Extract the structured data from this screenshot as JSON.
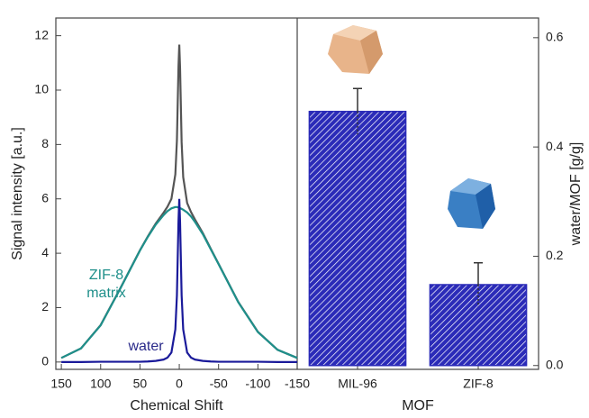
{
  "chart_data": [
    {
      "type": "line",
      "x_label": "Chemical Shift",
      "y_label": "Signal intensity [a.u.]",
      "x": [
        150,
        125,
        100,
        75,
        50,
        40,
        30,
        20,
        15,
        10,
        5,
        3,
        1,
        0,
        -1,
        -3,
        -5,
        -10,
        -15,
        -20,
        -30,
        -40,
        -50,
        -75,
        -100,
        -125,
        -150
      ],
      "series": [
        {
          "color": "#555555",
          "values": [
            0.15,
            0.5,
            1.36,
            2.71,
            4.11,
            4.62,
            5.09,
            5.49,
            5.71,
            6.0,
            6.9,
            8.15,
            10.85,
            11.67,
            10.83,
            8.08,
            6.8,
            5.85,
            5.51,
            5.24,
            4.74,
            4.17,
            3.61,
            2.21,
            1.11,
            0.45,
            0.15
          ]
        },
        {
          "color": "#1f8f8a",
          "values": [
            0.15,
            0.5,
            1.35,
            2.7,
            4.1,
            4.6,
            5.05,
            5.4,
            5.55,
            5.65,
            5.7,
            5.7,
            5.68,
            5.67,
            5.66,
            5.63,
            5.6,
            5.5,
            5.35,
            5.15,
            4.7,
            4.15,
            3.6,
            2.2,
            1.1,
            0.45,
            0.15
          ]
        },
        {
          "color": "#1a1a9a",
          "values": [
            0,
            0,
            0.01,
            0.01,
            0.01,
            0.02,
            0.04,
            0.09,
            0.16,
            0.35,
            1.2,
            2.45,
            5.17,
            6,
            5.17,
            2.45,
            1.2,
            0.35,
            0.16,
            0.09,
            0.04,
            0.02,
            0.01,
            0.01,
            0.01,
            0,
            0
          ]
        }
      ],
      "annotations": [
        {
          "lines": [
            "ZIF-8",
            "matrix"
          ],
          "color": "#1f8f8a"
        },
        {
          "lines": [
            "water"
          ],
          "color": "#2a2a8a"
        }
      ],
      "xlim": [
        157,
        -150
      ],
      "xticks": [
        150,
        100,
        50,
        0,
        -50,
        -100,
        -150
      ],
      "ylim": [
        -0.27,
        12.65
      ],
      "yticks": [
        0,
        2,
        4,
        6,
        8,
        10,
        12
      ]
    },
    {
      "type": "bar",
      "x_label": "MOF",
      "y_label": "water/MOF [g/g]",
      "categories": [
        "MIL-96",
        "ZIF-8"
      ],
      "values": [
        0.465,
        0.148
      ],
      "errors": [
        0.042,
        0.04
      ],
      "color": "#2b2bb8",
      "ylim": [
        -0.007,
        0.636
      ],
      "yticks": [
        {
          "value": 0,
          "label": "0.0"
        },
        0.2,
        0.4,
        0.6
      ]
    }
  ]
}
